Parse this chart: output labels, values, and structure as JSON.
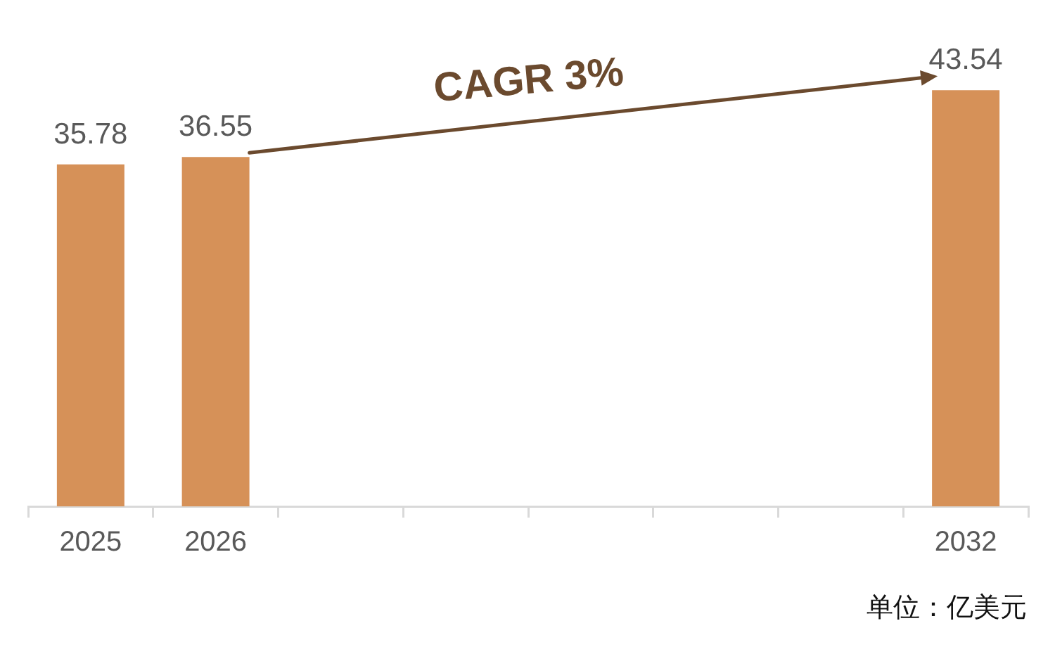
{
  "chart_data": {
    "type": "bar",
    "categories": [
      "2025",
      "2026",
      null,
      null,
      null,
      null,
      null,
      "2032"
    ],
    "values": [
      35.78,
      36.55,
      null,
      null,
      null,
      null,
      null,
      43.54
    ],
    "color": "#d69158",
    "data_labels": true,
    "grid": false,
    "legend": false,
    "tick_labels": "x",
    "annotations": [
      "CAGR 3%",
      "单位：亿美元"
    ]
  }
}
